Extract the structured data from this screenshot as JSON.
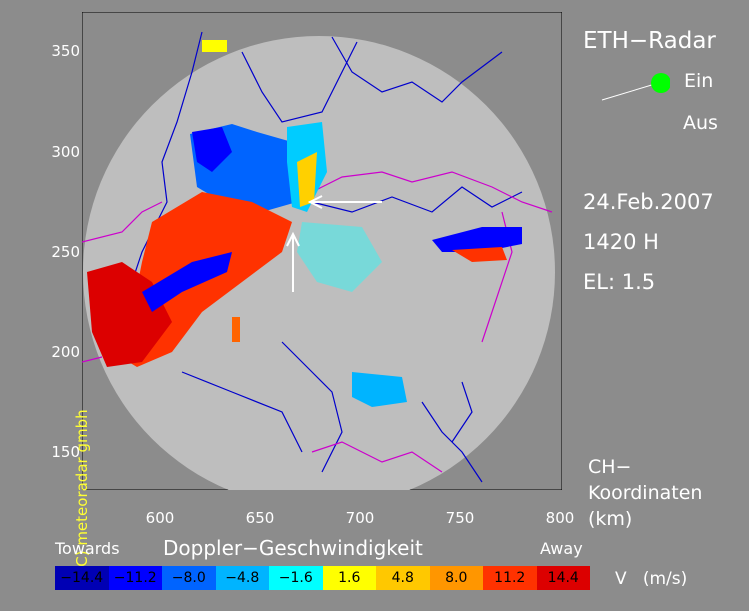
{
  "header": {
    "title": "ETH−Radar"
  },
  "status": {
    "on_label": "Ein",
    "off_label": "Aus",
    "on_color": "#00ff00"
  },
  "info": {
    "date": "24.Feb.2007",
    "time": "1420 H",
    "elevation": "EL: 1.5"
  },
  "coords": {
    "line1": "CH−",
    "line2": "Koordinaten",
    "line3": "(km)"
  },
  "copyright": "(C) meteoradar gmbh",
  "axes": {
    "y_ticks": [
      "350",
      "300",
      "250",
      "200",
      "150"
    ],
    "x_ticks": [
      "600",
      "650",
      "700",
      "750",
      "800"
    ]
  },
  "legend": {
    "title": "Doppler−Geschwindigkeit",
    "towards_label": "Towards",
    "away_label": "Away",
    "unit_label": "V   (m/s)",
    "bins": [
      {
        "label": "−14.4",
        "color": "#0000b4"
      },
      {
        "label": "−11.2",
        "color": "#0000ff"
      },
      {
        "label": "−8.0",
        "color": "#0064ff"
      },
      {
        "label": "−4.8",
        "color": "#00b4ff"
      },
      {
        "label": "−1.6",
        "color": "#00ffff"
      },
      {
        "label": "1.6",
        "color": "#ffff00"
      },
      {
        "label": "4.8",
        "color": "#ffc800"
      },
      {
        "label": "8.0",
        "color": "#ff9600"
      },
      {
        "label": "11.2",
        "color": "#ff3200"
      },
      {
        "label": "14.4",
        "color": "#dc0000"
      }
    ]
  },
  "map": {
    "disc_color": "#bebebe",
    "border_color": "#0000cc",
    "region_color": "#cc00cc"
  }
}
